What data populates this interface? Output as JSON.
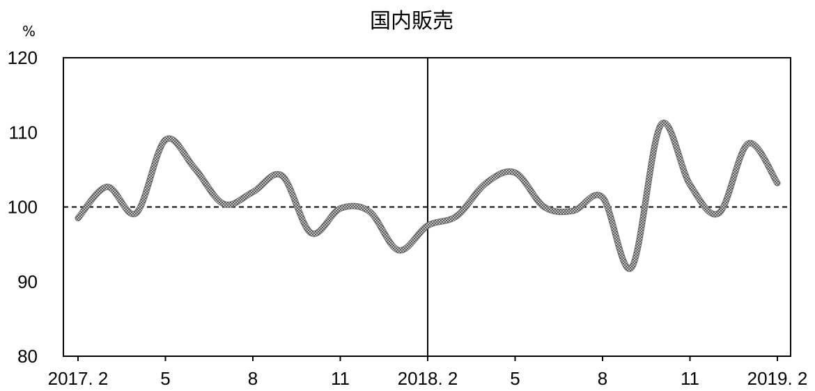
{
  "chart_data": {
    "type": "line",
    "title": "国内販売",
    "y_unit": "%",
    "ylim": [
      80,
      120
    ],
    "y_ticks": [
      "80",
      "90",
      "100",
      "110",
      "120"
    ],
    "x_tick_labels": [
      "2017. 2",
      "5",
      "8",
      "11",
      "2018. 2",
      "5",
      "8",
      "11",
      "2019. 2"
    ],
    "x_tick_index": [
      0,
      3,
      6,
      9,
      12,
      15,
      18,
      21,
      24
    ],
    "reference_line": 100,
    "divider_index": 12,
    "series": [
      {
        "values": [
          98.5,
          102.7,
          99.2,
          109.0,
          105.2,
          100.4,
          102.0,
          104.2,
          96.5,
          99.8,
          99.4,
          94.2,
          97.5,
          98.8,
          103.2,
          104.6,
          100.0,
          99.5,
          101.3,
          91.9,
          111.0,
          103.0,
          99.2,
          108.5,
          103.2
        ]
      }
    ],
    "colors": {
      "line": "#8a8a8a",
      "axis": "#000000"
    }
  }
}
